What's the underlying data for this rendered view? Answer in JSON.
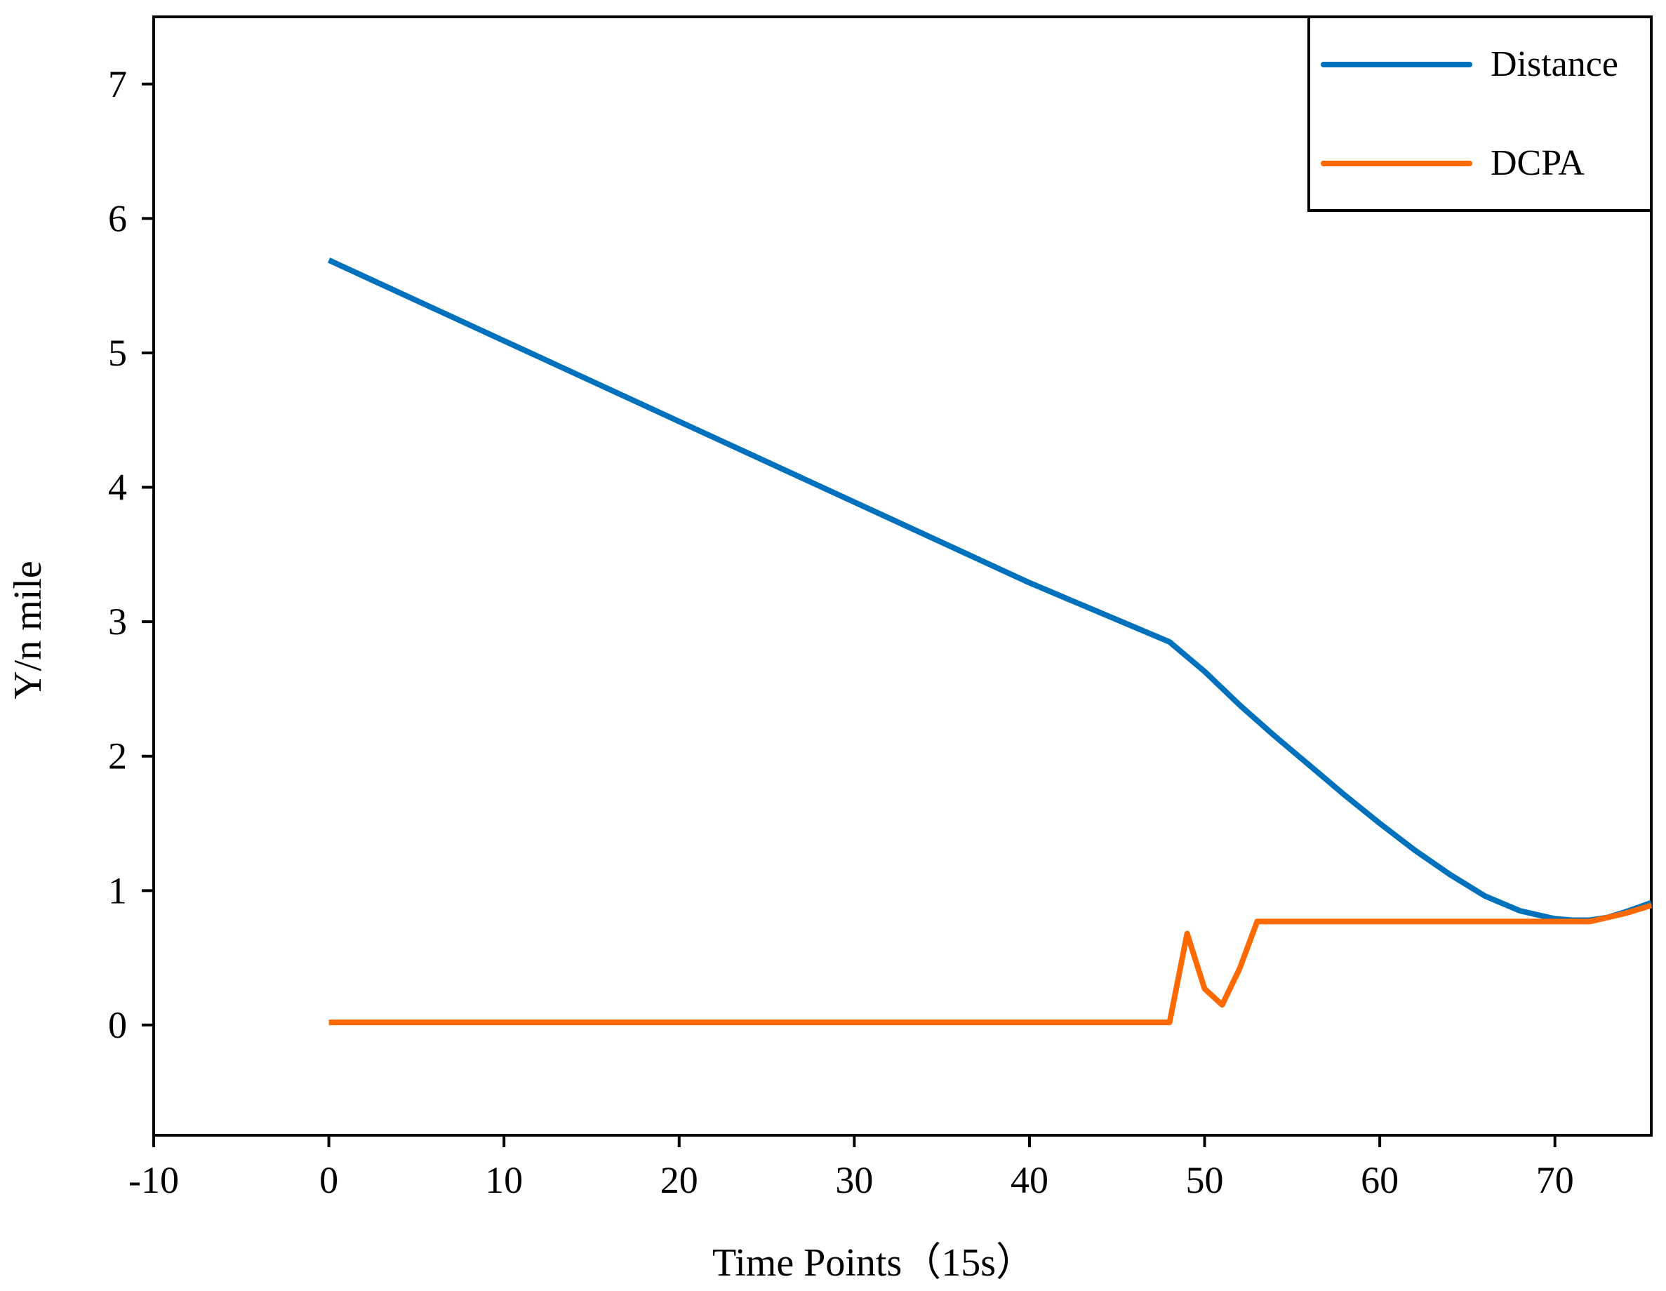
{
  "chart_data": {
    "type": "line",
    "xlabel": "Time Points（15s）",
    "ylabel": "Y/n mile",
    "xlim": [
      -10,
      75.5
    ],
    "ylim": [
      -0.82,
      7.5
    ],
    "xticks": [
      -10,
      0,
      10,
      20,
      30,
      40,
      50,
      60,
      70
    ],
    "yticks": [
      0,
      1,
      2,
      3,
      4,
      5,
      6,
      7
    ],
    "xtick_labels": [
      "-10",
      "0",
      "10",
      "20",
      "30",
      "40",
      "50",
      "60",
      "70"
    ],
    "ytick_labels": [
      "0",
      "1",
      "2",
      "3",
      "4",
      "5",
      "6",
      "7"
    ],
    "grid": false,
    "legend_position": "top-right",
    "series": [
      {
        "name": "Distance",
        "color": "#0072BD",
        "points": [
          [
            0,
            5.69
          ],
          [
            10,
            5.09
          ],
          [
            20,
            4.49
          ],
          [
            30,
            3.89
          ],
          [
            40,
            3.29
          ],
          [
            48,
            2.85
          ],
          [
            50,
            2.63
          ],
          [
            52,
            2.38
          ],
          [
            54,
            2.15
          ],
          [
            56,
            1.93
          ],
          [
            58,
            1.71
          ],
          [
            60,
            1.5
          ],
          [
            62,
            1.3
          ],
          [
            64,
            1.12
          ],
          [
            66,
            0.96
          ],
          [
            68,
            0.85
          ],
          [
            70,
            0.79
          ],
          [
            71,
            0.78
          ],
          [
            72,
            0.78
          ],
          [
            73,
            0.8
          ],
          [
            74,
            0.84
          ],
          [
            75.5,
            0.91
          ]
        ]
      },
      {
        "name": "DCPA",
        "color": "#FF6A00",
        "points": [
          [
            0,
            0.02
          ],
          [
            48,
            0.02
          ],
          [
            49,
            0.68
          ],
          [
            50,
            0.27
          ],
          [
            51,
            0.15
          ],
          [
            52,
            0.42
          ],
          [
            53,
            0.77
          ],
          [
            60,
            0.77
          ],
          [
            70,
            0.77
          ],
          [
            72,
            0.77
          ],
          [
            74,
            0.83
          ],
          [
            75.5,
            0.89
          ]
        ]
      }
    ]
  }
}
